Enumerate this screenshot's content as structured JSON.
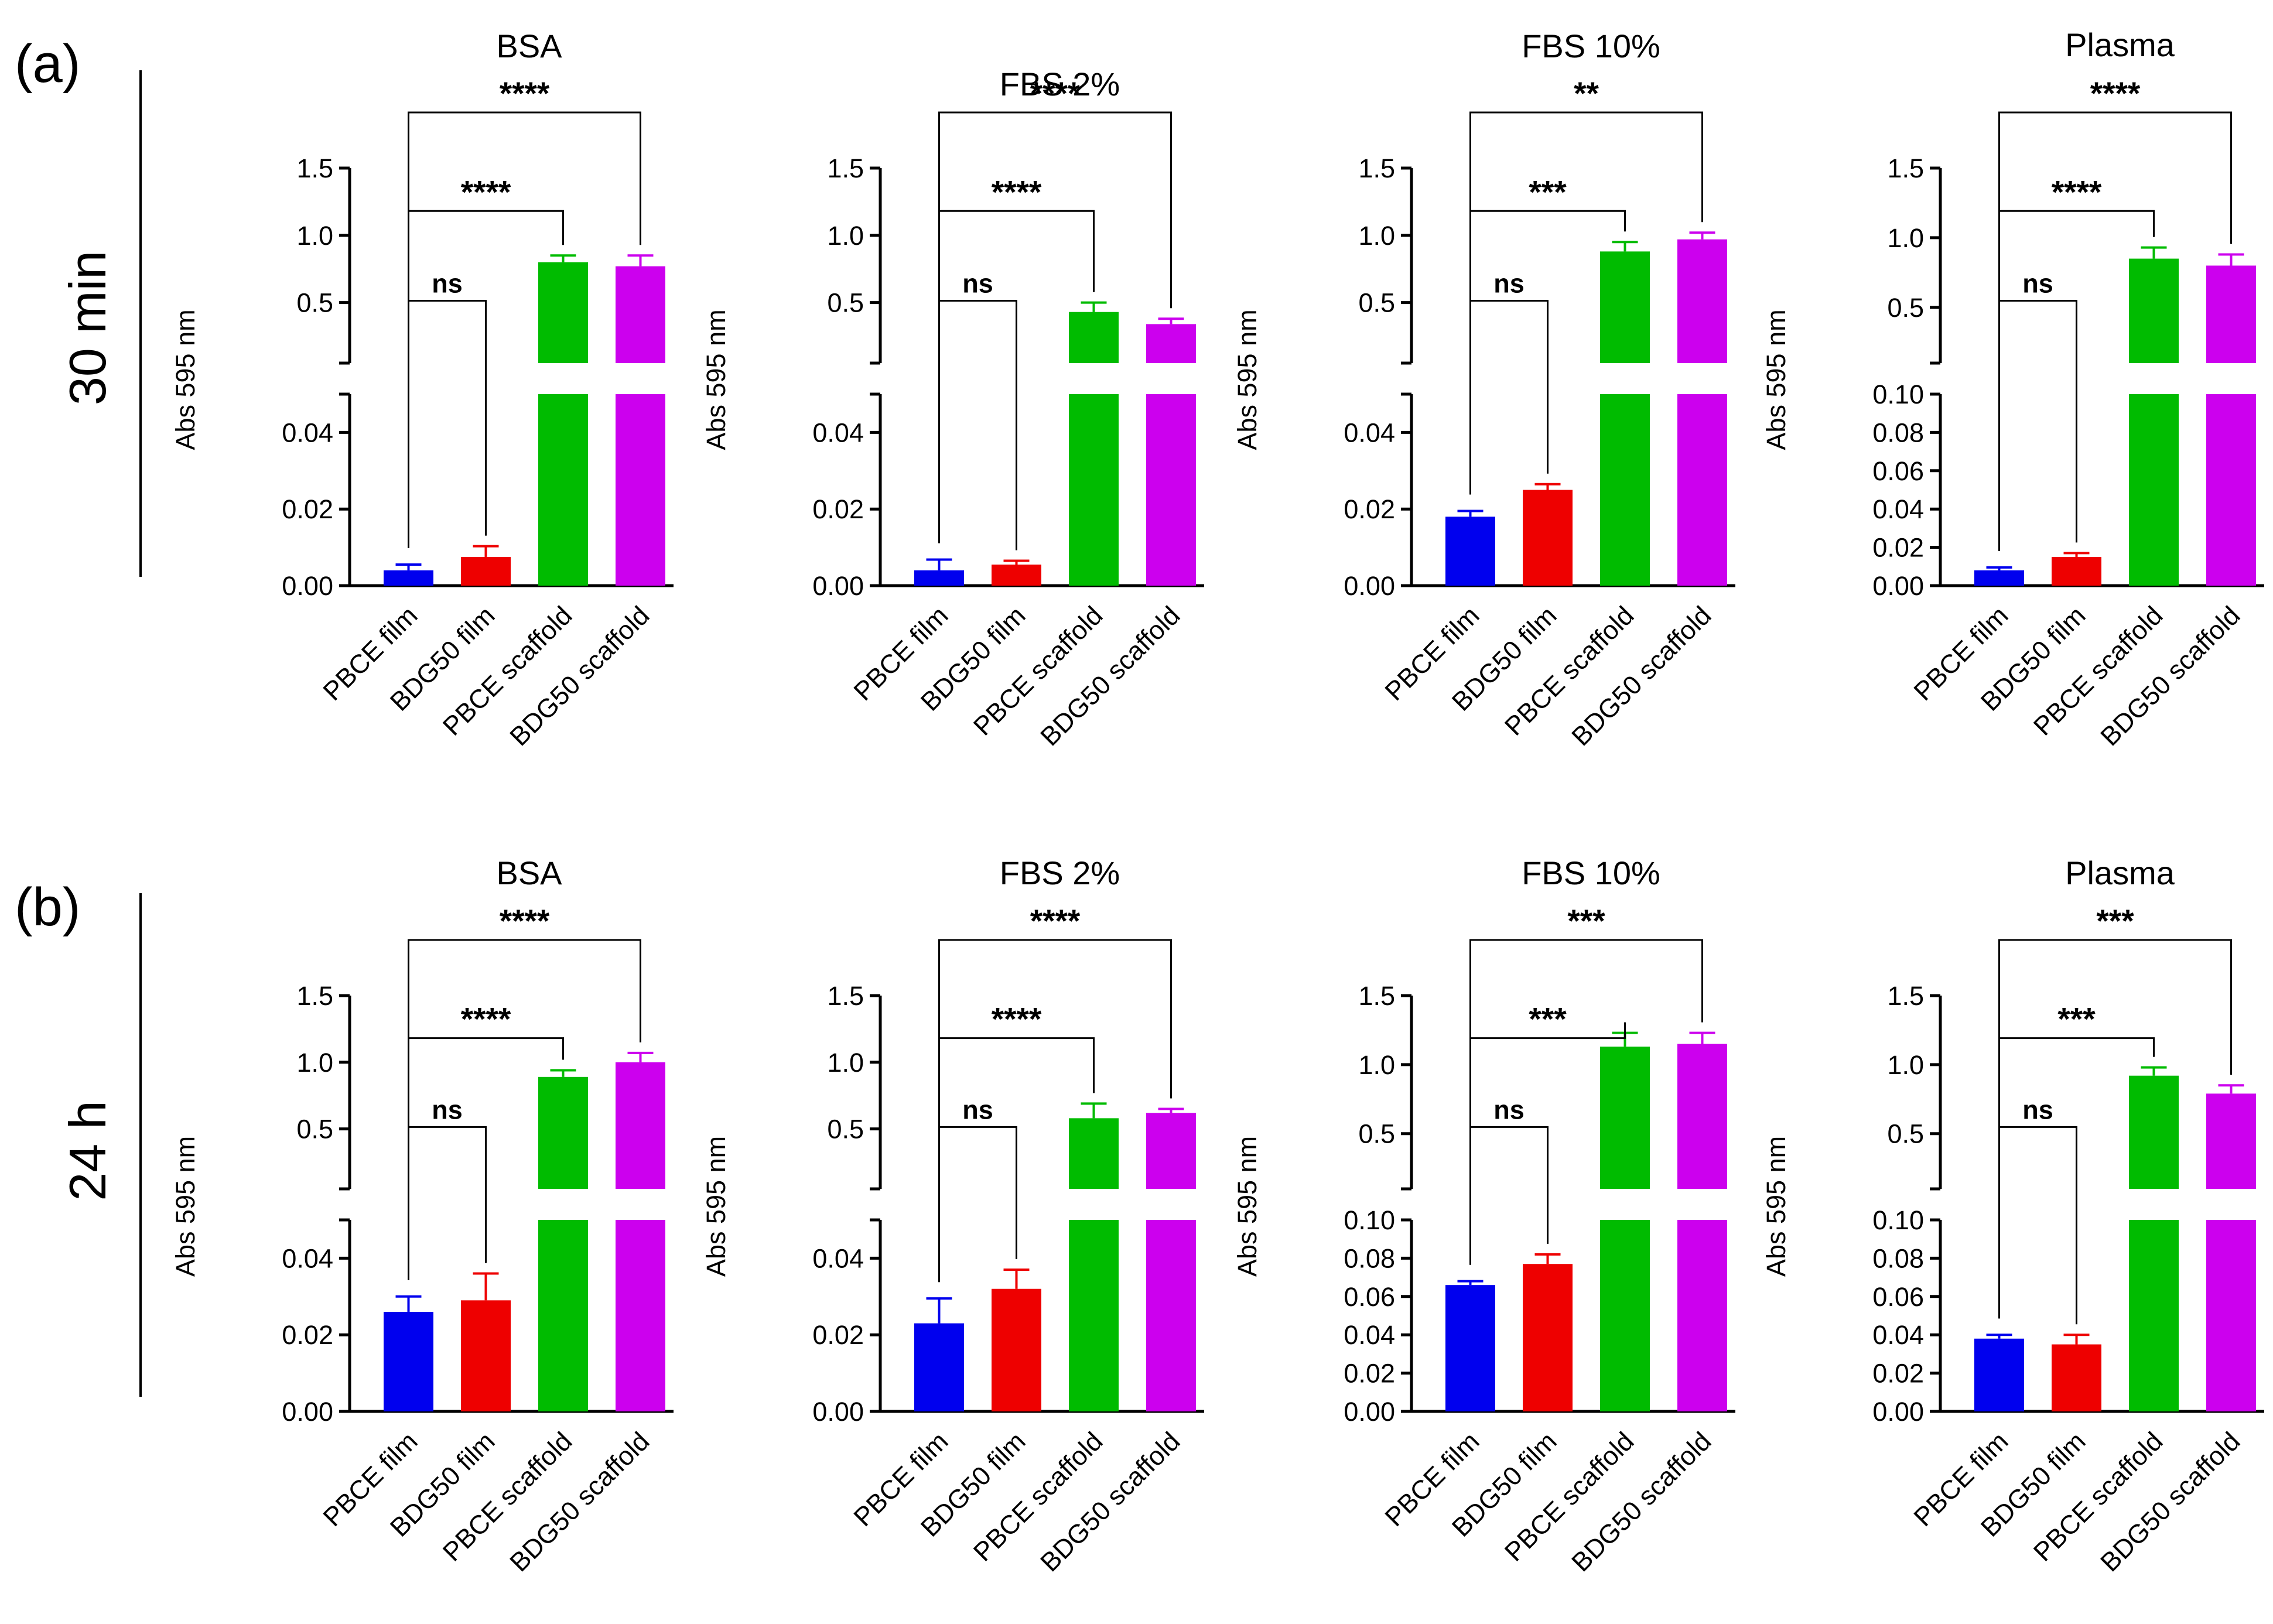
{
  "figure": {
    "panels": [
      {
        "letter": "(a)",
        "time_label": "30 min"
      },
      {
        "letter": "(b)",
        "time_label": "24 h"
      }
    ]
  },
  "colors": {
    "PBCE film": "#0000ee",
    "BDG50 film": "#ee0000",
    "PBCE scaffold": "#00bb00",
    "BDG50 scaffold": "#cc00ee"
  },
  "chart_data": [
    {
      "type": "bar",
      "row": 0,
      "col": 0,
      "title": "BSA",
      "ylabel": "Abs 595 nm",
      "categories": [
        "PBCE film",
        "BDG50 film",
        "PBCE scaffold",
        "BDG50 scaffold"
      ],
      "values": [
        0.004,
        0.0075,
        0.8,
        0.77
      ],
      "errors": [
        0.0015,
        0.0028,
        0.05,
        0.08
      ],
      "axis_break": true,
      "lower_ylim": [
        0,
        0.05
      ],
      "lower_ticks": [
        0.0,
        0.02,
        0.04
      ],
      "upper_ylim": [
        0.05,
        1.5
      ],
      "upper_ticks": [
        0.5,
        1.0,
        1.5
      ],
      "comparisons": [
        {
          "from": 0,
          "to": 1,
          "label": "ns"
        },
        {
          "from": 0,
          "to": 2,
          "label": "****"
        },
        {
          "from": 0,
          "to": 3,
          "label": "****"
        }
      ]
    },
    {
      "type": "bar",
      "row": 0,
      "col": 1,
      "title": "FBS 2%",
      "ylabel": "Abs 595 nm",
      "categories": [
        "PBCE film",
        "BDG50 film",
        "PBCE scaffold",
        "BDG50 scaffold"
      ],
      "values": [
        0.004,
        0.0055,
        0.43,
        0.34
      ],
      "errors": [
        0.0028,
        0.001,
        0.07,
        0.04
      ],
      "axis_break": true,
      "lower_ylim": [
        0,
        0.05
      ],
      "lower_ticks": [
        0.0,
        0.02,
        0.04
      ],
      "upper_ylim": [
        0.05,
        1.5
      ],
      "upper_ticks": [
        0.5,
        1.0,
        1.5
      ],
      "comparisons": [
        {
          "from": 0,
          "to": 1,
          "label": "ns"
        },
        {
          "from": 0,
          "to": 2,
          "label": "****"
        },
        {
          "from": 0,
          "to": 3,
          "label": "****"
        }
      ]
    },
    {
      "type": "bar",
      "row": 0,
      "col": 2,
      "title": "FBS 10%",
      "ylabel": "Abs 595 nm",
      "categories": [
        "PBCE film",
        "BDG50 film",
        "PBCE scaffold",
        "BDG50 scaffold"
      ],
      "values": [
        0.018,
        0.025,
        0.88,
        0.97
      ],
      "errors": [
        0.0015,
        0.0015,
        0.07,
        0.05
      ],
      "axis_break": true,
      "lower_ylim": [
        0,
        0.05
      ],
      "lower_ticks": [
        0.0,
        0.02,
        0.04
      ],
      "upper_ylim": [
        0.05,
        1.5
      ],
      "upper_ticks": [
        0.5,
        1.0,
        1.5
      ],
      "comparisons": [
        {
          "from": 0,
          "to": 1,
          "label": "ns"
        },
        {
          "from": 0,
          "to": 2,
          "label": "***"
        },
        {
          "from": 0,
          "to": 3,
          "label": "**"
        }
      ]
    },
    {
      "type": "bar",
      "row": 0,
      "col": 3,
      "title": "Plasma",
      "ylabel": "Abs 595 nm",
      "categories": [
        "PBCE film",
        "BDG50 film",
        "PBCE scaffold",
        "BDG50 scaffold"
      ],
      "values": [
        0.008,
        0.015,
        0.85,
        0.8
      ],
      "errors": [
        0.0015,
        0.002,
        0.08,
        0.08
      ],
      "axis_break": true,
      "lower_ylim": [
        0,
        0.1
      ],
      "lower_ticks": [
        0.0,
        0.02,
        0.04,
        0.06,
        0.08,
        0.1
      ],
      "upper_ylim": [
        0.1,
        1.5
      ],
      "upper_ticks": [
        0.5,
        1.0,
        1.5
      ],
      "comparisons": [
        {
          "from": 0,
          "to": 1,
          "label": "ns"
        },
        {
          "from": 0,
          "to": 2,
          "label": "****"
        },
        {
          "from": 0,
          "to": 3,
          "label": "****"
        }
      ]
    },
    {
      "type": "bar",
      "row": 1,
      "col": 0,
      "title": "BSA",
      "ylabel": "Abs 595 nm",
      "categories": [
        "PBCE film",
        "BDG50 film",
        "PBCE scaffold",
        "BDG50 scaffold"
      ],
      "values": [
        0.026,
        0.029,
        0.89,
        1.0
      ],
      "errors": [
        0.004,
        0.007,
        0.05,
        0.07
      ],
      "axis_break": true,
      "lower_ylim": [
        0,
        0.05
      ],
      "lower_ticks": [
        0.0,
        0.02,
        0.04
      ],
      "upper_ylim": [
        0.05,
        1.5
      ],
      "upper_ticks": [
        0.5,
        1.0,
        1.5
      ],
      "comparisons": [
        {
          "from": 0,
          "to": 1,
          "label": "ns"
        },
        {
          "from": 0,
          "to": 2,
          "label": "****"
        },
        {
          "from": 0,
          "to": 3,
          "label": "****"
        }
      ]
    },
    {
      "type": "bar",
      "row": 1,
      "col": 1,
      "title": "FBS 2%",
      "ylabel": "Abs 595 nm",
      "categories": [
        "PBCE film",
        "BDG50 film",
        "PBCE scaffold",
        "BDG50 scaffold"
      ],
      "values": [
        0.023,
        0.032,
        0.58,
        0.62
      ],
      "errors": [
        0.0065,
        0.005,
        0.11,
        0.03
      ],
      "axis_break": true,
      "lower_ylim": [
        0,
        0.05
      ],
      "lower_ticks": [
        0.0,
        0.02,
        0.04
      ],
      "upper_ylim": [
        0.05,
        1.5
      ],
      "upper_ticks": [
        0.5,
        1.0,
        1.5
      ],
      "comparisons": [
        {
          "from": 0,
          "to": 1,
          "label": "ns"
        },
        {
          "from": 0,
          "to": 2,
          "label": "****"
        },
        {
          "from": 0,
          "to": 3,
          "label": "****"
        }
      ]
    },
    {
      "type": "bar",
      "row": 1,
      "col": 2,
      "title": "FBS 10%",
      "ylabel": "Abs 595 nm",
      "categories": [
        "PBCE film",
        "BDG50 film",
        "PBCE scaffold",
        "BDG50 scaffold"
      ],
      "values": [
        0.066,
        0.077,
        1.13,
        1.15
      ],
      "errors": [
        0.002,
        0.005,
        0.1,
        0.08
      ],
      "axis_break": true,
      "lower_ylim": [
        0,
        0.1
      ],
      "lower_ticks": [
        0.0,
        0.02,
        0.04,
        0.06,
        0.08,
        0.1
      ],
      "upper_ylim": [
        0.1,
        1.5
      ],
      "upper_ticks": [
        0.5,
        1.0,
        1.5
      ],
      "comparisons": [
        {
          "from": 0,
          "to": 1,
          "label": "ns"
        },
        {
          "from": 0,
          "to": 2,
          "label": "***"
        },
        {
          "from": 0,
          "to": 3,
          "label": "***"
        }
      ]
    },
    {
      "type": "bar",
      "row": 1,
      "col": 3,
      "title": "Plasma",
      "ylabel": "Abs 595 nm",
      "categories": [
        "PBCE film",
        "BDG50 film",
        "PBCE scaffold",
        "BDG50 scaffold"
      ],
      "values": [
        0.038,
        0.035,
        0.92,
        0.79
      ],
      "errors": [
        0.002,
        0.005,
        0.06,
        0.06
      ],
      "axis_break": true,
      "lower_ylim": [
        0,
        0.1
      ],
      "lower_ticks": [
        0.0,
        0.02,
        0.04,
        0.06,
        0.08,
        0.1
      ],
      "upper_ylim": [
        0.1,
        1.5
      ],
      "upper_ticks": [
        0.5,
        1.0,
        1.5
      ],
      "comparisons": [
        {
          "from": 0,
          "to": 1,
          "label": "ns"
        },
        {
          "from": 0,
          "to": 2,
          "label": "***"
        },
        {
          "from": 0,
          "to": 3,
          "label": "***"
        }
      ]
    }
  ]
}
